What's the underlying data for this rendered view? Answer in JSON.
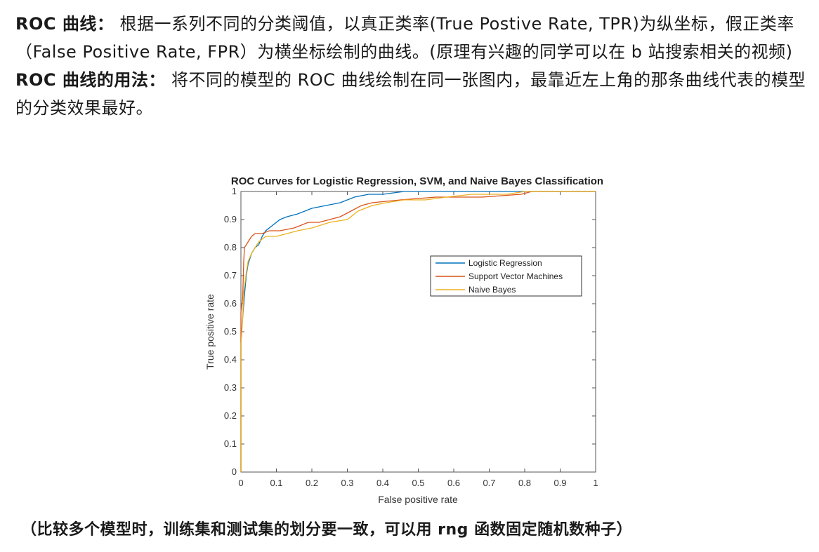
{
  "paragraphs": [
    {
      "label": "ROC 曲线：",
      "text": "根据一系列不同的分类阈值，以真正类率(True Postive Rate, TPR)为纵坐标，假正类率（False Positive Rate, FPR）为横坐标绘制的曲线。(原理有兴趣的同学可以在 b 站搜索相关的视频)"
    },
    {
      "label": "ROC 曲线的用法：",
      "text": "将不同的模型的 ROC 曲线绘制在同一张图内，最靠近左上角的那条曲线代表的模型的分类效果最好。"
    }
  ],
  "footer": "（比较多个模型时，训练集和测试集的划分要一致，可以用 rng 函数固定随机数种子）",
  "chart_data": {
    "type": "line",
    "title": "ROC Curves for Logistic Regression, SVM, and Naive Bayes Classification",
    "xlabel": "False positive rate",
    "ylabel": "True positive rate",
    "xlim": [
      0,
      1
    ],
    "ylim": [
      0,
      1
    ],
    "xticks": [
      "0",
      "0.1",
      "0.2",
      "0.3",
      "0.4",
      "0.5",
      "0.6",
      "0.7",
      "0.8",
      "0.9",
      "1"
    ],
    "yticks": [
      "0",
      "0.1",
      "0.2",
      "0.3",
      "0.4",
      "0.5",
      "0.6",
      "0.7",
      "0.8",
      "0.9",
      "1"
    ],
    "grid": false,
    "legend_position": "center-right",
    "series": [
      {
        "name": "Logistic Regression",
        "color": "#0072BD",
        "points": [
          [
            0,
            0
          ],
          [
            0,
            0.47
          ],
          [
            0.005,
            0.55
          ],
          [
            0.01,
            0.63
          ],
          [
            0.015,
            0.7
          ],
          [
            0.02,
            0.74
          ],
          [
            0.03,
            0.78
          ],
          [
            0.04,
            0.8
          ],
          [
            0.05,
            0.81
          ],
          [
            0.06,
            0.84
          ],
          [
            0.07,
            0.86
          ],
          [
            0.08,
            0.87
          ],
          [
            0.09,
            0.88
          ],
          [
            0.11,
            0.9
          ],
          [
            0.13,
            0.91
          ],
          [
            0.16,
            0.92
          ],
          [
            0.18,
            0.93
          ],
          [
            0.2,
            0.94
          ],
          [
            0.24,
            0.95
          ],
          [
            0.28,
            0.96
          ],
          [
            0.3,
            0.97
          ],
          [
            0.32,
            0.98
          ],
          [
            0.36,
            0.99
          ],
          [
            0.4,
            0.99
          ],
          [
            0.46,
            1.0
          ],
          [
            1,
            1
          ]
        ]
      },
      {
        "name": "Support Vector Machines",
        "color": "#D95319",
        "points": [
          [
            0,
            0
          ],
          [
            0,
            0.57
          ],
          [
            0.005,
            0.62
          ],
          [
            0.008,
            0.75
          ],
          [
            0.01,
            0.8
          ],
          [
            0.02,
            0.82
          ],
          [
            0.03,
            0.84
          ],
          [
            0.04,
            0.85
          ],
          [
            0.06,
            0.85
          ],
          [
            0.08,
            0.86
          ],
          [
            0.11,
            0.86
          ],
          [
            0.15,
            0.87
          ],
          [
            0.17,
            0.88
          ],
          [
            0.19,
            0.89
          ],
          [
            0.22,
            0.89
          ],
          [
            0.25,
            0.9
          ],
          [
            0.28,
            0.91
          ],
          [
            0.31,
            0.93
          ],
          [
            0.34,
            0.95
          ],
          [
            0.37,
            0.96
          ],
          [
            0.45,
            0.97
          ],
          [
            0.55,
            0.98
          ],
          [
            0.68,
            0.98
          ],
          [
            0.79,
            0.99
          ],
          [
            0.82,
            1.0
          ],
          [
            1,
            1
          ]
        ]
      },
      {
        "name": "Naive Bayes",
        "color": "#EDB120",
        "points": [
          [
            0,
            0
          ],
          [
            0,
            0.45
          ],
          [
            0.005,
            0.55
          ],
          [
            0.008,
            0.64
          ],
          [
            0.015,
            0.71
          ],
          [
            0.02,
            0.75
          ],
          [
            0.03,
            0.78
          ],
          [
            0.05,
            0.82
          ],
          [
            0.07,
            0.84
          ],
          [
            0.1,
            0.84
          ],
          [
            0.13,
            0.85
          ],
          [
            0.16,
            0.86
          ],
          [
            0.2,
            0.87
          ],
          [
            0.25,
            0.89
          ],
          [
            0.3,
            0.9
          ],
          [
            0.33,
            0.93
          ],
          [
            0.37,
            0.95
          ],
          [
            0.41,
            0.96
          ],
          [
            0.46,
            0.97
          ],
          [
            0.52,
            0.97
          ],
          [
            0.58,
            0.98
          ],
          [
            0.65,
            0.99
          ],
          [
            0.75,
            0.99
          ],
          [
            0.8,
            1.0
          ],
          [
            1,
            1
          ]
        ]
      }
    ]
  }
}
